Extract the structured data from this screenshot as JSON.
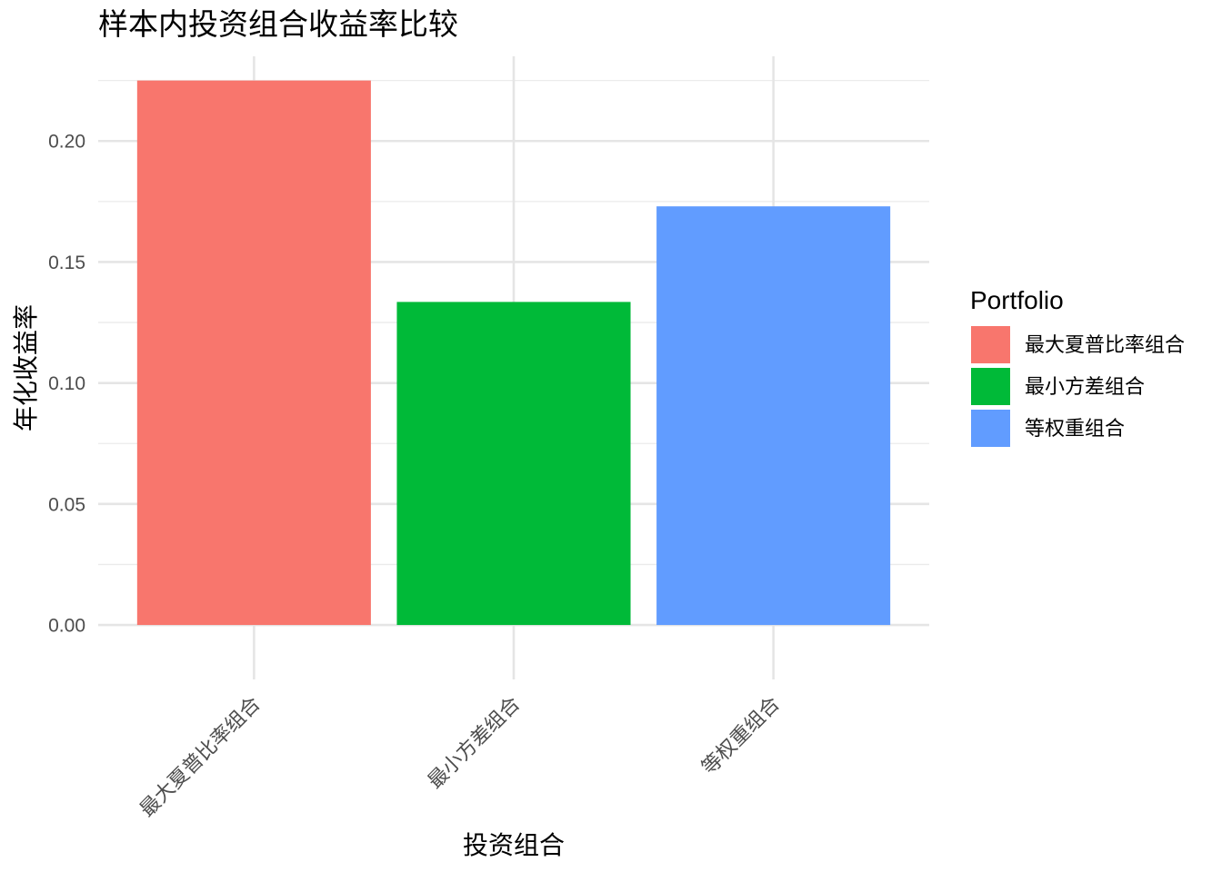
{
  "chart_data": {
    "type": "bar",
    "title": "样本内投资组合收益率比较",
    "xlabel": "投资组合",
    "ylabel": "年化收益率",
    "categories": [
      "最大夏普比率组合",
      "最小方差组合",
      "等权重组合"
    ],
    "values": [
      0.225,
      0.1335,
      0.173
    ],
    "colors": [
      "#F8766D",
      "#00BA38",
      "#619CFF"
    ],
    "ylim": [
      -0.0225,
      0.235
    ],
    "yticks": [
      0.0,
      0.05,
      0.1,
      0.15,
      0.2
    ],
    "ytick_labels": [
      "0.00",
      "0.05",
      "0.10",
      "0.15",
      "0.20"
    ],
    "grid": true,
    "legend": {
      "title": "Portfolio",
      "placement": "right",
      "entries": [
        "最大夏普比率组合",
        "最小方差组合",
        "等权重组合"
      ]
    }
  }
}
